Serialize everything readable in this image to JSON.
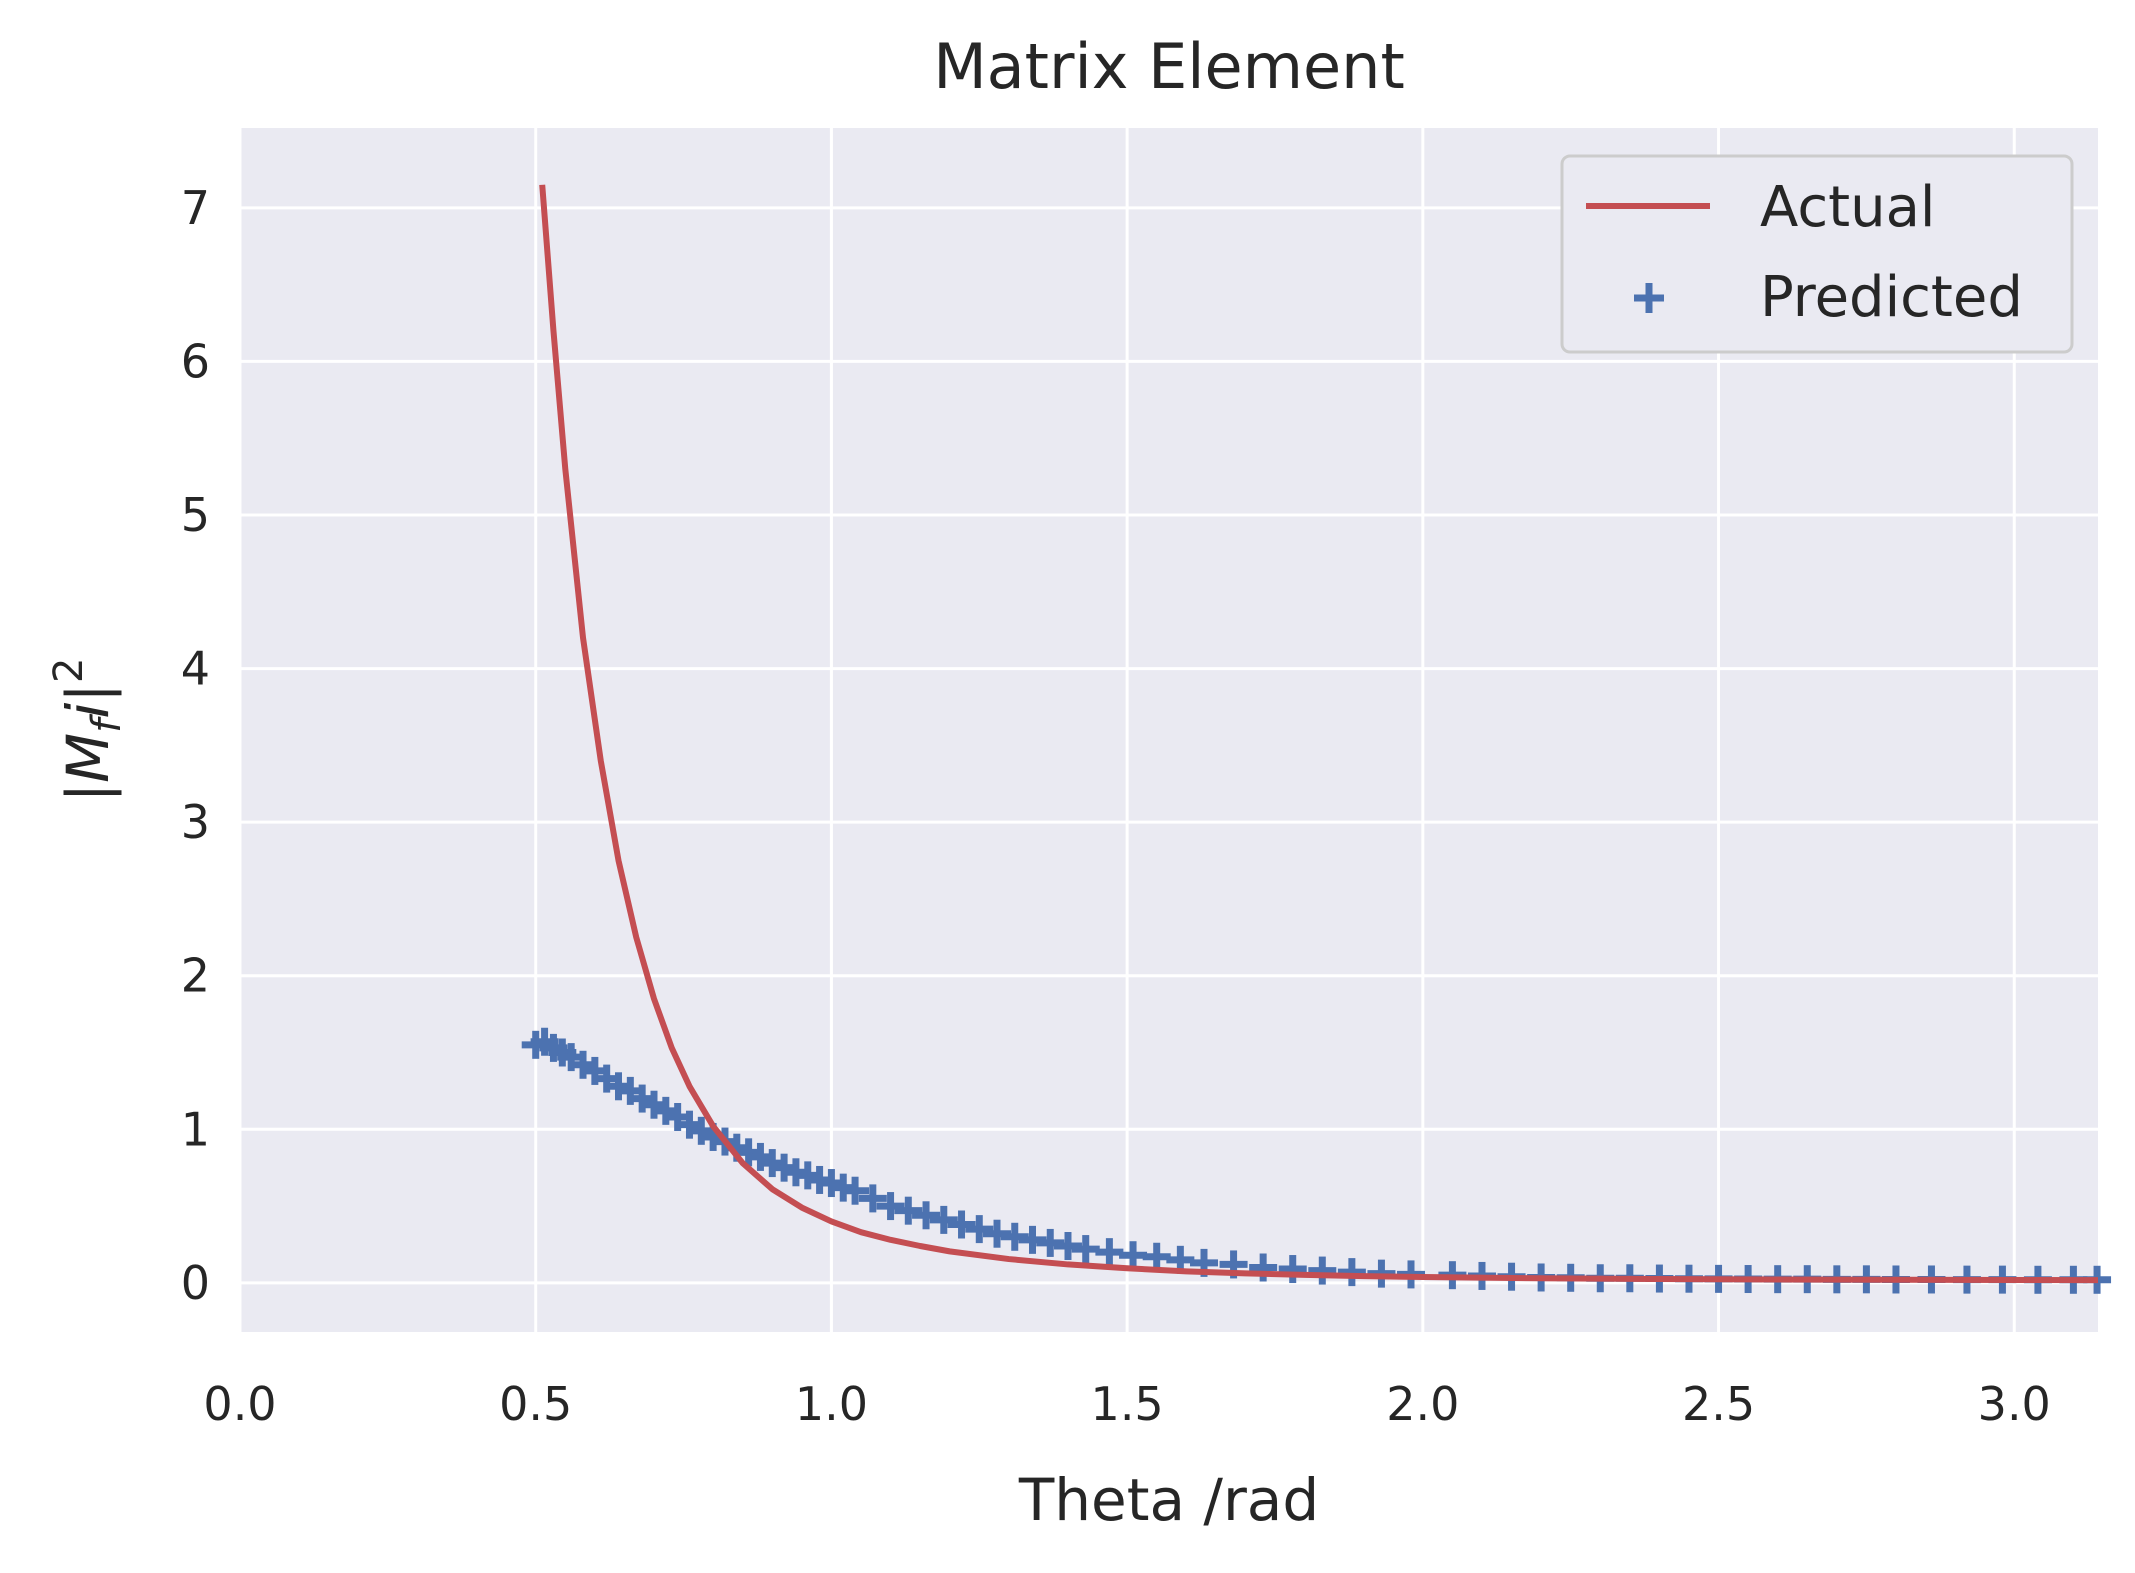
{
  "chart_data": {
    "type": "line",
    "title": "Matrix Element",
    "xlabel": "Theta /rad",
    "ylabel": {
      "text": "|M",
      "subscript": "f",
      "italic": "i",
      "close": "|",
      "superscript": "2"
    },
    "xlim": [
      0.0,
      3.1416
    ],
    "ylim": [
      -0.32,
      7.52
    ],
    "xticks": [
      0.0,
      0.5,
      1.0,
      1.5,
      2.0,
      2.5,
      3.0
    ],
    "xtick_labels": [
      "0.0",
      "0.5",
      "1.0",
      "1.5",
      "2.0",
      "2.5",
      "3.0"
    ],
    "yticks": [
      0,
      1,
      2,
      3,
      4,
      5,
      6,
      7
    ],
    "ytick_labels": [
      "0",
      "1",
      "2",
      "3",
      "4",
      "5",
      "6",
      "7"
    ],
    "grid": true,
    "legend_position": "top-right",
    "colors": {
      "background": "#eaeaf2",
      "grid": "#ffffff",
      "actual": "#c44e52",
      "predicted": "#4c72b0",
      "text": "#262626"
    },
    "series": [
      {
        "name": "Actual",
        "kind": "line",
        "x": [
          0.511,
          0.53,
          0.55,
          0.58,
          0.61,
          0.64,
          0.67,
          0.7,
          0.73,
          0.76,
          0.8,
          0.85,
          0.9,
          0.95,
          1.0,
          1.05,
          1.1,
          1.15,
          1.2,
          1.3,
          1.4,
          1.5,
          1.6,
          1.7,
          1.8,
          1.9,
          2.0,
          2.2,
          2.4,
          2.6,
          2.8,
          3.0,
          3.1416
        ],
        "y": [
          7.15,
          6.2,
          5.3,
          4.2,
          3.4,
          2.75,
          2.25,
          1.85,
          1.53,
          1.28,
          1.02,
          0.78,
          0.61,
          0.49,
          0.4,
          0.33,
          0.28,
          0.24,
          0.205,
          0.155,
          0.12,
          0.095,
          0.075,
          0.062,
          0.052,
          0.044,
          0.038,
          0.03,
          0.025,
          0.022,
          0.02,
          0.019,
          0.018
        ]
      },
      {
        "name": "Predicted",
        "kind": "scatter",
        "marker": "+",
        "x": [
          0.5,
          0.515,
          0.53,
          0.545,
          0.56,
          0.58,
          0.6,
          0.62,
          0.64,
          0.66,
          0.68,
          0.7,
          0.72,
          0.74,
          0.76,
          0.78,
          0.8,
          0.82,
          0.84,
          0.86,
          0.88,
          0.9,
          0.92,
          0.94,
          0.96,
          0.98,
          1.0,
          1.02,
          1.04,
          1.07,
          1.1,
          1.13,
          1.16,
          1.19,
          1.22,
          1.25,
          1.28,
          1.31,
          1.34,
          1.37,
          1.4,
          1.43,
          1.47,
          1.51,
          1.55,
          1.59,
          1.63,
          1.68,
          1.73,
          1.78,
          1.83,
          1.88,
          1.93,
          1.98,
          2.05,
          2.1,
          2.15,
          2.2,
          2.25,
          2.3,
          2.35,
          2.4,
          2.45,
          2.5,
          2.55,
          2.6,
          2.65,
          2.7,
          2.75,
          2.8,
          2.86,
          2.92,
          2.98,
          3.04,
          3.1,
          3.14
        ],
        "y": [
          1.55,
          1.57,
          1.53,
          1.5,
          1.47,
          1.42,
          1.38,
          1.33,
          1.28,
          1.25,
          1.2,
          1.16,
          1.12,
          1.08,
          1.03,
          0.99,
          0.95,
          0.92,
          0.88,
          0.85,
          0.82,
          0.78,
          0.75,
          0.72,
          0.7,
          0.67,
          0.65,
          0.62,
          0.6,
          0.55,
          0.5,
          0.47,
          0.44,
          0.41,
          0.38,
          0.35,
          0.32,
          0.3,
          0.28,
          0.26,
          0.24,
          0.22,
          0.2,
          0.18,
          0.17,
          0.15,
          0.13,
          0.12,
          0.1,
          0.09,
          0.08,
          0.07,
          0.06,
          0.055,
          0.05,
          0.045,
          0.04,
          0.035,
          0.033,
          0.03,
          0.03,
          0.028,
          0.027,
          0.026,
          0.025,
          0.024,
          0.024,
          0.023,
          0.023,
          0.022,
          0.022,
          0.021,
          0.021,
          0.02,
          0.02,
          0.02
        ]
      }
    ]
  }
}
